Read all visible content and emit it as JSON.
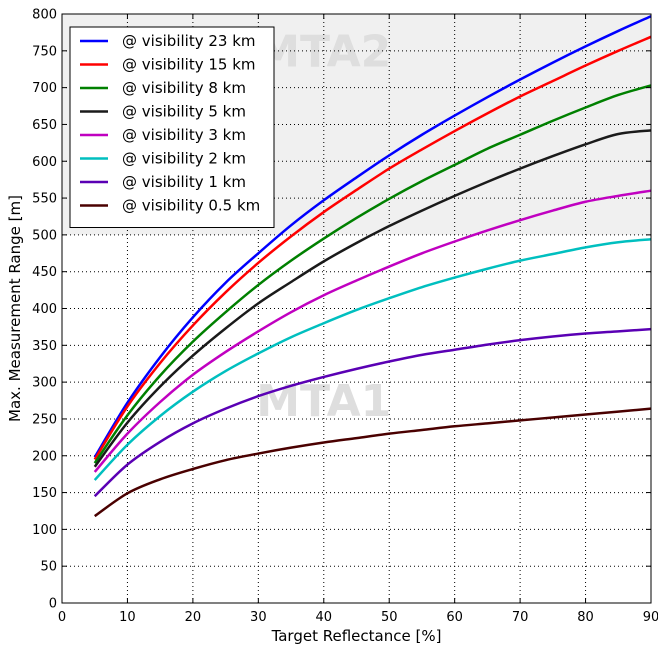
{
  "chart_data": {
    "type": "line",
    "xlabel": "Target Reflectance [%]",
    "ylabel": "Max. Measurement Range [m]",
    "xlim": [
      0,
      90
    ],
    "ylim": [
      0,
      800
    ],
    "x_ticks": [
      0,
      10,
      20,
      30,
      40,
      50,
      60,
      70,
      80,
      90
    ],
    "y_ticks": [
      0,
      50,
      100,
      150,
      200,
      250,
      300,
      350,
      400,
      450,
      500,
      550,
      600,
      650,
      700,
      750,
      800
    ],
    "grid": true,
    "grid_style": "dotted",
    "legend_position": "top-left",
    "regions": [
      {
        "label": "MTA2",
        "y_range": [
          500,
          800
        ],
        "fill": "#f0f0f0"
      },
      {
        "label": "MTA1",
        "y_range": [
          0,
          500
        ],
        "fill": "#ffffff"
      }
    ],
    "x": [
      5,
      10,
      15,
      20,
      25,
      30,
      35,
      40,
      45,
      50,
      55,
      60,
      65,
      70,
      75,
      80,
      85,
      90
    ],
    "series": [
      {
        "name": "@ visibility 23 km",
        "color": "#0000ff",
        "values": [
          198,
          272,
          334,
          388,
          435,
          475,
          513,
          547,
          578,
          608,
          636,
          662,
          687,
          711,
          734,
          756,
          777,
          797
        ]
      },
      {
        "name": "@ visibility 15 km",
        "color": "#ff0000",
        "values": [
          195,
          267,
          326,
          377,
          422,
          462,
          498,
          531,
          561,
          590,
          616,
          641,
          665,
          688,
          709,
          730,
          750,
          769
        ]
      },
      {
        "name": "@ visibility 8 km",
        "color": "#008000",
        "values": [
          190,
          255,
          309,
          355,
          395,
          432,
          465,
          495,
          523,
          549,
          573,
          595,
          617,
          636,
          655,
          673,
          690,
          703
        ]
      },
      {
        "name": "@ visibility 5 km",
        "color": "#1a1a1a",
        "values": [
          185,
          245,
          294,
          336,
          373,
          407,
          436,
          464,
          489,
          512,
          533,
          553,
          572,
          590,
          607,
          623,
          637,
          642
        ]
      },
      {
        "name": "@ visibility 3 km",
        "color": "#c000c0",
        "values": [
          178,
          230,
          273,
          310,
          341,
          369,
          395,
          418,
          438,
          457,
          475,
          491,
          506,
          520,
          533,
          545,
          553,
          560
        ]
      },
      {
        "name": "@ visibility 2 km",
        "color": "#00bfbf",
        "values": [
          167,
          215,
          254,
          287,
          315,
          339,
          361,
          380,
          398,
          414,
          429,
          442,
          454,
          465,
          474,
          483,
          490,
          494
        ]
      },
      {
        "name": "@ visibility 1 km",
        "color": "#5a00b4",
        "values": [
          145,
          188,
          219,
          244,
          264,
          281,
          295,
          307,
          318,
          328,
          337,
          344,
          351,
          357,
          362,
          366,
          369,
          372
        ]
      },
      {
        "name": "@ visibility 0.5 km",
        "color": "#4a0000",
        "values": [
          118,
          149,
          168,
          182,
          194,
          203,
          211,
          218,
          224,
          230,
          235,
          240,
          244,
          248,
          252,
          256,
          260,
          264
        ]
      }
    ]
  }
}
